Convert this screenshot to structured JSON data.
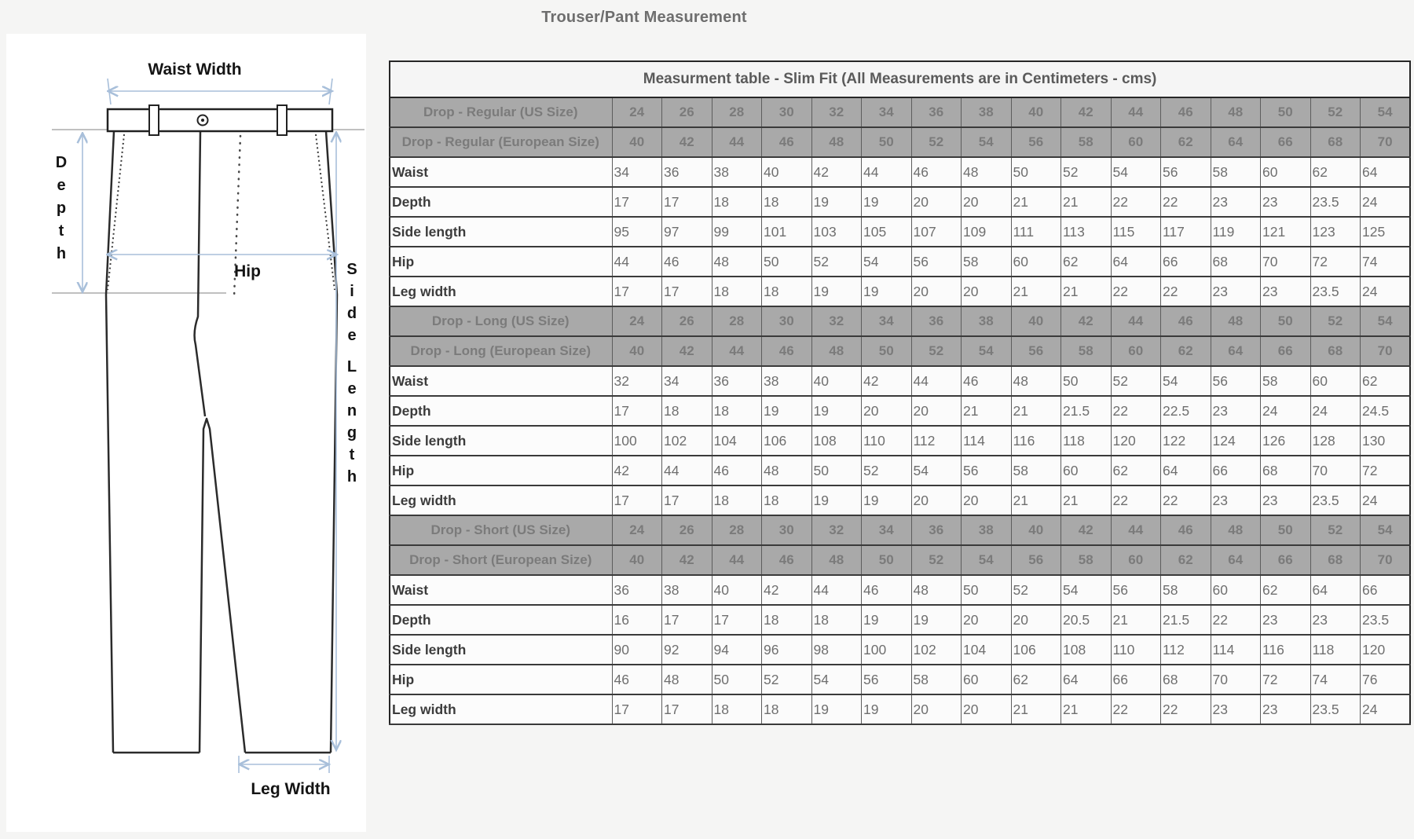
{
  "page": {
    "title": "Trouser/Pant Measurement"
  },
  "diagram": {
    "labels": {
      "waist_width": "Waist Width",
      "depth": "Depth",
      "hip": "Hip",
      "side_length": "Side Length",
      "leg_width": "Leg Width"
    }
  },
  "colors": {
    "arrow_blue": "#a8bfda",
    "header_gray": "#a9a9a9",
    "header_text_gray": "#7b7b7b",
    "page_background": "#f5f5f4",
    "title_text": "#6e6e6e"
  },
  "table": {
    "title": "Measurment table - Slim Fit (All Measurements are in Centimeters - cms)",
    "sections": [
      {
        "us_label": "Drop - Regular (US Size)",
        "eu_label": "Drop - Regular (European Size)",
        "us_sizes": [
          24,
          26,
          28,
          30,
          32,
          34,
          36,
          38,
          40,
          42,
          44,
          46,
          48,
          50,
          52,
          54
        ],
        "eu_sizes": [
          40,
          42,
          44,
          46,
          48,
          50,
          52,
          54,
          56,
          58,
          60,
          62,
          64,
          66,
          68,
          70
        ],
        "rows": [
          {
            "label": "Waist",
            "values": [
              34,
              36,
              38,
              40,
              42,
              44,
              46,
              48,
              50,
              52,
              54,
              56,
              58,
              60,
              62,
              64
            ]
          },
          {
            "label": "Depth",
            "values": [
              17,
              17,
              18,
              18,
              19,
              19,
              20,
              20,
              21,
              21,
              22,
              22,
              23,
              23,
              23.5,
              24
            ]
          },
          {
            "label": "Side length",
            "values": [
              95,
              97,
              99,
              101,
              103,
              105,
              107,
              109,
              111,
              113,
              115,
              117,
              119,
              121,
              123,
              125
            ]
          },
          {
            "label": "Hip",
            "values": [
              44,
              46,
              48,
              50,
              52,
              54,
              56,
              58,
              60,
              62,
              64,
              66,
              68,
              70,
              72,
              74
            ]
          },
          {
            "label": "Leg width",
            "values": [
              17,
              17,
              18,
              18,
              19,
              19,
              20,
              20,
              21,
              21,
              22,
              22,
              23,
              23,
              23.5,
              24
            ]
          }
        ]
      },
      {
        "us_label": "Drop - Long (US Size)",
        "eu_label": "Drop - Long (European Size)",
        "us_sizes": [
          24,
          26,
          28,
          30,
          32,
          34,
          36,
          38,
          40,
          42,
          44,
          46,
          48,
          50,
          52,
          54
        ],
        "eu_sizes": [
          40,
          42,
          44,
          46,
          48,
          50,
          52,
          54,
          56,
          58,
          60,
          62,
          64,
          66,
          68,
          70
        ],
        "rows": [
          {
            "label": "Waist",
            "values": [
              32,
              34,
              36,
              38,
              40,
              42,
              44,
              46,
              48,
              50,
              52,
              54,
              56,
              58,
              60,
              62
            ]
          },
          {
            "label": "Depth",
            "values": [
              17,
              18,
              18,
              19,
              19,
              20,
              20,
              21,
              21,
              21.5,
              22,
              22.5,
              23,
              24,
              24,
              24.5
            ]
          },
          {
            "label": "Side length",
            "values": [
              100,
              102,
              104,
              106,
              108,
              110,
              112,
              114,
              116,
              118,
              120,
              122,
              124,
              126,
              128,
              130
            ]
          },
          {
            "label": "Hip",
            "values": [
              42,
              44,
              46,
              48,
              50,
              52,
              54,
              56,
              58,
              60,
              62,
              64,
              66,
              68,
              70,
              72
            ]
          },
          {
            "label": "Leg width",
            "values": [
              17,
              17,
              18,
              18,
              19,
              19,
              20,
              20,
              21,
              21,
              22,
              22,
              23,
              23,
              23.5,
              24
            ]
          }
        ]
      },
      {
        "us_label": "Drop - Short (US Size)",
        "eu_label": "Drop - Short (European Size)",
        "us_sizes": [
          24,
          26,
          28,
          30,
          32,
          34,
          36,
          38,
          40,
          42,
          44,
          46,
          48,
          50,
          52,
          54
        ],
        "eu_sizes": [
          40,
          42,
          44,
          46,
          48,
          50,
          52,
          54,
          56,
          58,
          60,
          62,
          64,
          66,
          68,
          70
        ],
        "rows": [
          {
            "label": "Waist",
            "values": [
              36,
              38,
              40,
              42,
              44,
              46,
              48,
              50,
              52,
              54,
              56,
              58,
              60,
              62,
              64,
              66
            ]
          },
          {
            "label": "Depth",
            "values": [
              16,
              17,
              17,
              18,
              18,
              19,
              19,
              20,
              20,
              20.5,
              21,
              21.5,
              22,
              23,
              23,
              23.5
            ]
          },
          {
            "label": "Side length",
            "values": [
              90,
              92,
              94,
              96,
              98,
              100,
              102,
              104,
              106,
              108,
              110,
              112,
              114,
              116,
              118,
              120
            ]
          },
          {
            "label": "Hip",
            "values": [
              46,
              48,
              50,
              52,
              54,
              56,
              58,
              60,
              62,
              64,
              66,
              68,
              70,
              72,
              74,
              76
            ]
          },
          {
            "label": "Leg width",
            "values": [
              17,
              17,
              18,
              18,
              19,
              19,
              20,
              20,
              21,
              21,
              22,
              22,
              23,
              23,
              23.5,
              24
            ]
          }
        ]
      }
    ]
  }
}
